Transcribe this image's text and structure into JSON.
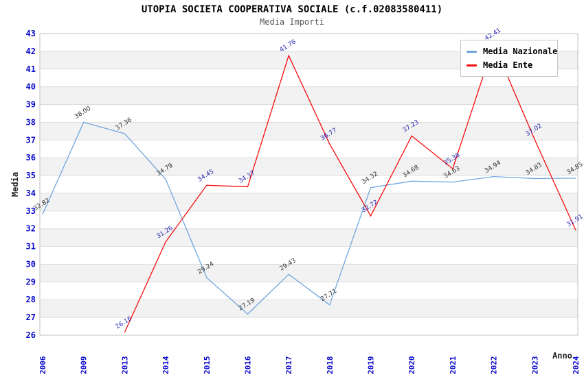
{
  "chart_data": {
    "type": "line",
    "title": "UTOPIA SOCIETA COOPERATIVA SOCIALE (c.f.02083580411)",
    "subtitle": "Media Importi",
    "xlabel": "Anno",
    "ylabel": "Media",
    "categories": [
      "2006",
      "2009",
      "2013",
      "2014",
      "2015",
      "2016",
      "2017",
      "2018",
      "2019",
      "2020",
      "2021",
      "2022",
      "2023",
      "2024"
    ],
    "ylim": [
      26,
      43
    ],
    "ytick_step": 1,
    "grid": "horizontal gridlines with alternating gray/white bands",
    "legend_position": "top-right",
    "colors": {
      "band": "#f2f2f2",
      "grid": "#dcdcdc",
      "border": "#c0c0c0",
      "axis_ticks": "#0b0bcc"
    },
    "series": [
      {
        "name": "Media Nazionale",
        "color": "#6fa6de",
        "label_color": "#333333",
        "values": [
          32.82,
          38.0,
          37.36,
          34.79,
          29.24,
          27.19,
          29.43,
          27.71,
          34.32,
          34.68,
          34.63,
          34.94,
          34.83,
          34.85
        ]
      },
      {
        "name": "Media Ente",
        "color": "#f50d0d",
        "label_color": "#2a2ab4",
        "values": [
          null,
          null,
          26.16,
          31.26,
          34.45,
          34.37,
          41.76,
          36.77,
          32.72,
          37.23,
          35.38,
          42.41,
          37.02,
          31.91
        ]
      }
    ]
  }
}
